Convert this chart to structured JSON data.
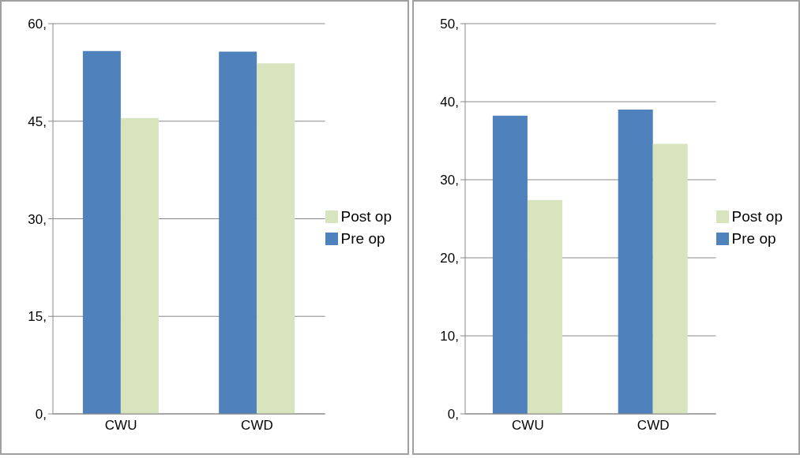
{
  "chart_data": [
    {
      "type": "bar",
      "categories": [
        "CWU",
        "CWD"
      ],
      "series": [
        {
          "name": "Pre op",
          "color": "#4f81bd",
          "values": [
            55.8,
            55.7
          ]
        },
        {
          "name": "Post op",
          "color": "#d7e4bd",
          "values": [
            45.5,
            53.9
          ]
        }
      ],
      "ylim": [
        0,
        60
      ],
      "yticks": [
        {
          "value": 0,
          "label": "0,"
        },
        {
          "value": 15,
          "label": "15,"
        },
        {
          "value": 30,
          "label": "30,"
        },
        {
          "value": 45,
          "label": "45,"
        },
        {
          "value": 60,
          "label": "60,"
        }
      ],
      "grid": "y",
      "legend": "right"
    },
    {
      "type": "bar",
      "categories": [
        "CWU",
        "CWD"
      ],
      "series": [
        {
          "name": "Pre op",
          "color": "#4f81bd",
          "values": [
            38.2,
            39.0
          ]
        },
        {
          "name": "Post op",
          "color": "#d7e4bd",
          "values": [
            27.4,
            34.6
          ]
        }
      ],
      "ylim": [
        0,
        50
      ],
      "yticks": [
        {
          "value": 0,
          "label": "0,"
        },
        {
          "value": 10,
          "label": "10,"
        },
        {
          "value": 20,
          "label": "20,"
        },
        {
          "value": 30,
          "label": "30,"
        },
        {
          "value": 40,
          "label": "40,"
        },
        {
          "value": 50,
          "label": "50,"
        }
      ],
      "grid": "y",
      "legend": "right"
    }
  ]
}
